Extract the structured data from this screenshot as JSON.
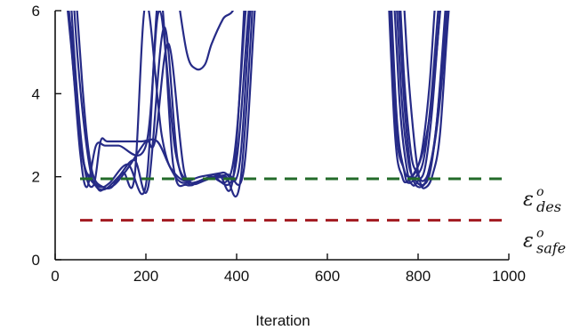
{
  "chart_data": {
    "type": "line",
    "xlabel": "Iteration",
    "ylabel": "",
    "xlim": [
      0,
      1000
    ],
    "ylim": [
      0,
      6
    ],
    "x_ticks": [
      0,
      200,
      400,
      600,
      800,
      1000
    ],
    "y_ticks": [
      0,
      2,
      4,
      6
    ],
    "x_tick_labels": [
      "0",
      "200",
      "400",
      "600",
      "800",
      "1000"
    ],
    "y_tick_labels": [
      "0",
      "2",
      "4",
      "6"
    ],
    "grid": false,
    "legend": "none",
    "colors": {
      "trajectories": "#262b87",
      "eps_des": "#236b2a",
      "eps_safe": "#a31b22",
      "axis": "#111111"
    },
    "reference_lines": [
      {
        "name": "eps_des",
        "symbol": "ε",
        "sup": "o",
        "sub": "des",
        "y": 1.95,
        "style": "dashed",
        "color": "#236b2a"
      },
      {
        "name": "eps_safe",
        "symbol": "ε",
        "sup": "o",
        "sub": "safe",
        "y": 0.95,
        "style": "dashed",
        "color": "#a31b22"
      }
    ],
    "series": [
      {
        "x": [
          0,
          40,
          60,
          80,
          100,
          120,
          160,
          200,
          230,
          260,
          290,
          330,
          380,
          415,
          440,
          460
        ],
        "y": [
          9,
          5,
          2.5,
          1.95,
          1.75,
          1.85,
          2.3,
          1.8,
          6.5,
          2.3,
          1.8,
          1.95,
          2.05,
          2.1,
          6,
          9
        ]
      },
      {
        "x": [
          20,
          45,
          65,
          85,
          100,
          115,
          150,
          190,
          225,
          255,
          285,
          320,
          370,
          405,
          430,
          455
        ],
        "y": [
          9,
          4.5,
          2.2,
          1.8,
          2.85,
          2.85,
          2.85,
          2.85,
          2.85,
          2.2,
          1.9,
          2.0,
          2.1,
          2.2,
          6,
          9
        ]
      },
      {
        "x": [
          0,
          35,
          55,
          70,
          90,
          110,
          140,
          200,
          230,
          265,
          300,
          340,
          390,
          420,
          445
        ],
        "y": [
          9,
          5.2,
          2.6,
          1.75,
          2.75,
          2.75,
          2.75,
          2.75,
          6,
          2.6,
          1.85,
          2.0,
          2.2,
          6,
          9
        ]
      },
      {
        "x": [
          25,
          50,
          75,
          95,
          110,
          125,
          150,
          175,
          200,
          235,
          265,
          300,
          345,
          395,
          425,
          450
        ],
        "y": [
          9,
          4.8,
          2.3,
          1.7,
          1.72,
          1.75,
          2.1,
          2.0,
          6.2,
          3.0,
          2.0,
          1.85,
          2.0,
          2.1,
          5.8,
          9
        ]
      },
      {
        "x": [
          30,
          60,
          80,
          105,
          130,
          160,
          200,
          220,
          250,
          285,
          320,
          360,
          395,
          430
        ],
        "y": [
          9,
          4.2,
          2.2,
          1.75,
          1.8,
          2.2,
          2.85,
          2.85,
          5.2,
          2.1,
          1.9,
          2.05,
          2.2,
          9
        ]
      },
      {
        "x": [
          240,
          265,
          290,
          310,
          330,
          345,
          370,
          400,
          425
        ],
        "y": [
          9,
          6.8,
          5.0,
          4.6,
          4.7,
          5.2,
          5.8,
          6.3,
          9
        ]
      },
      {
        "x": [
          10,
          40,
          62,
          88,
          110,
          140,
          175,
          205,
          240,
          270,
          300,
          340,
          375,
          410,
          450
        ],
        "y": [
          9,
          4.6,
          2.4,
          1.8,
          1.7,
          2.0,
          2.4,
          1.75,
          5.6,
          2.4,
          1.85,
          1.95,
          2.0,
          2.05,
          9
        ]
      },
      {
        "x": [
          745,
          765,
          780,
          790,
          805,
          820,
          840,
          860,
          880
        ],
        "y": [
          9,
          4.5,
          2.5,
          1.9,
          1.75,
          2.0,
          3.2,
          6,
          9
        ]
      },
      {
        "x": [
          735,
          758,
          775,
          788,
          800,
          815,
          830,
          850,
          875
        ],
        "y": [
          9,
          4.0,
          2.2,
          1.8,
          1.9,
          2.2,
          3.5,
          6.2,
          9
        ]
      },
      {
        "x": [
          730,
          752,
          770,
          780,
          795,
          812,
          828,
          848,
          870
        ],
        "y": [
          9,
          3.6,
          2.1,
          1.85,
          2.0,
          2.4,
          3.8,
          6.5,
          9
        ]
      },
      {
        "x": [
          725,
          748,
          765,
          778,
          792,
          808,
          825,
          842,
          865
        ],
        "y": [
          9,
          3.2,
          2.0,
          1.9,
          2.1,
          2.6,
          4.2,
          6.8,
          9
        ]
      },
      {
        "x": [
          755,
          775,
          792,
          805,
          818,
          832,
          848,
          866,
          890
        ],
        "y": [
          9,
          5.0,
          2.8,
          1.85,
          1.75,
          2.05,
          3.0,
          5.8,
          9
        ]
      },
      {
        "x": [
          740,
          762,
          778,
          792,
          810,
          826,
          842,
          862,
          884
        ],
        "y": [
          9,
          4.2,
          2.4,
          1.95,
          1.8,
          2.1,
          3.4,
          6.0,
          9
        ]
      },
      {
        "x": [
          728,
          750,
          768,
          783,
          798,
          815,
          832,
          852,
          872
        ],
        "y": [
          9,
          3.4,
          2.2,
          2.0,
          2.2,
          2.8,
          4.0,
          6.4,
          9
        ]
      },
      {
        "x": [
          748,
          768,
          784,
          797,
          812,
          828,
          846,
          866,
          886
        ],
        "y": [
          9,
          4.6,
          2.6,
          2.1,
          1.9,
          2.3,
          3.6,
          6.1,
          9
        ]
      }
    ]
  }
}
